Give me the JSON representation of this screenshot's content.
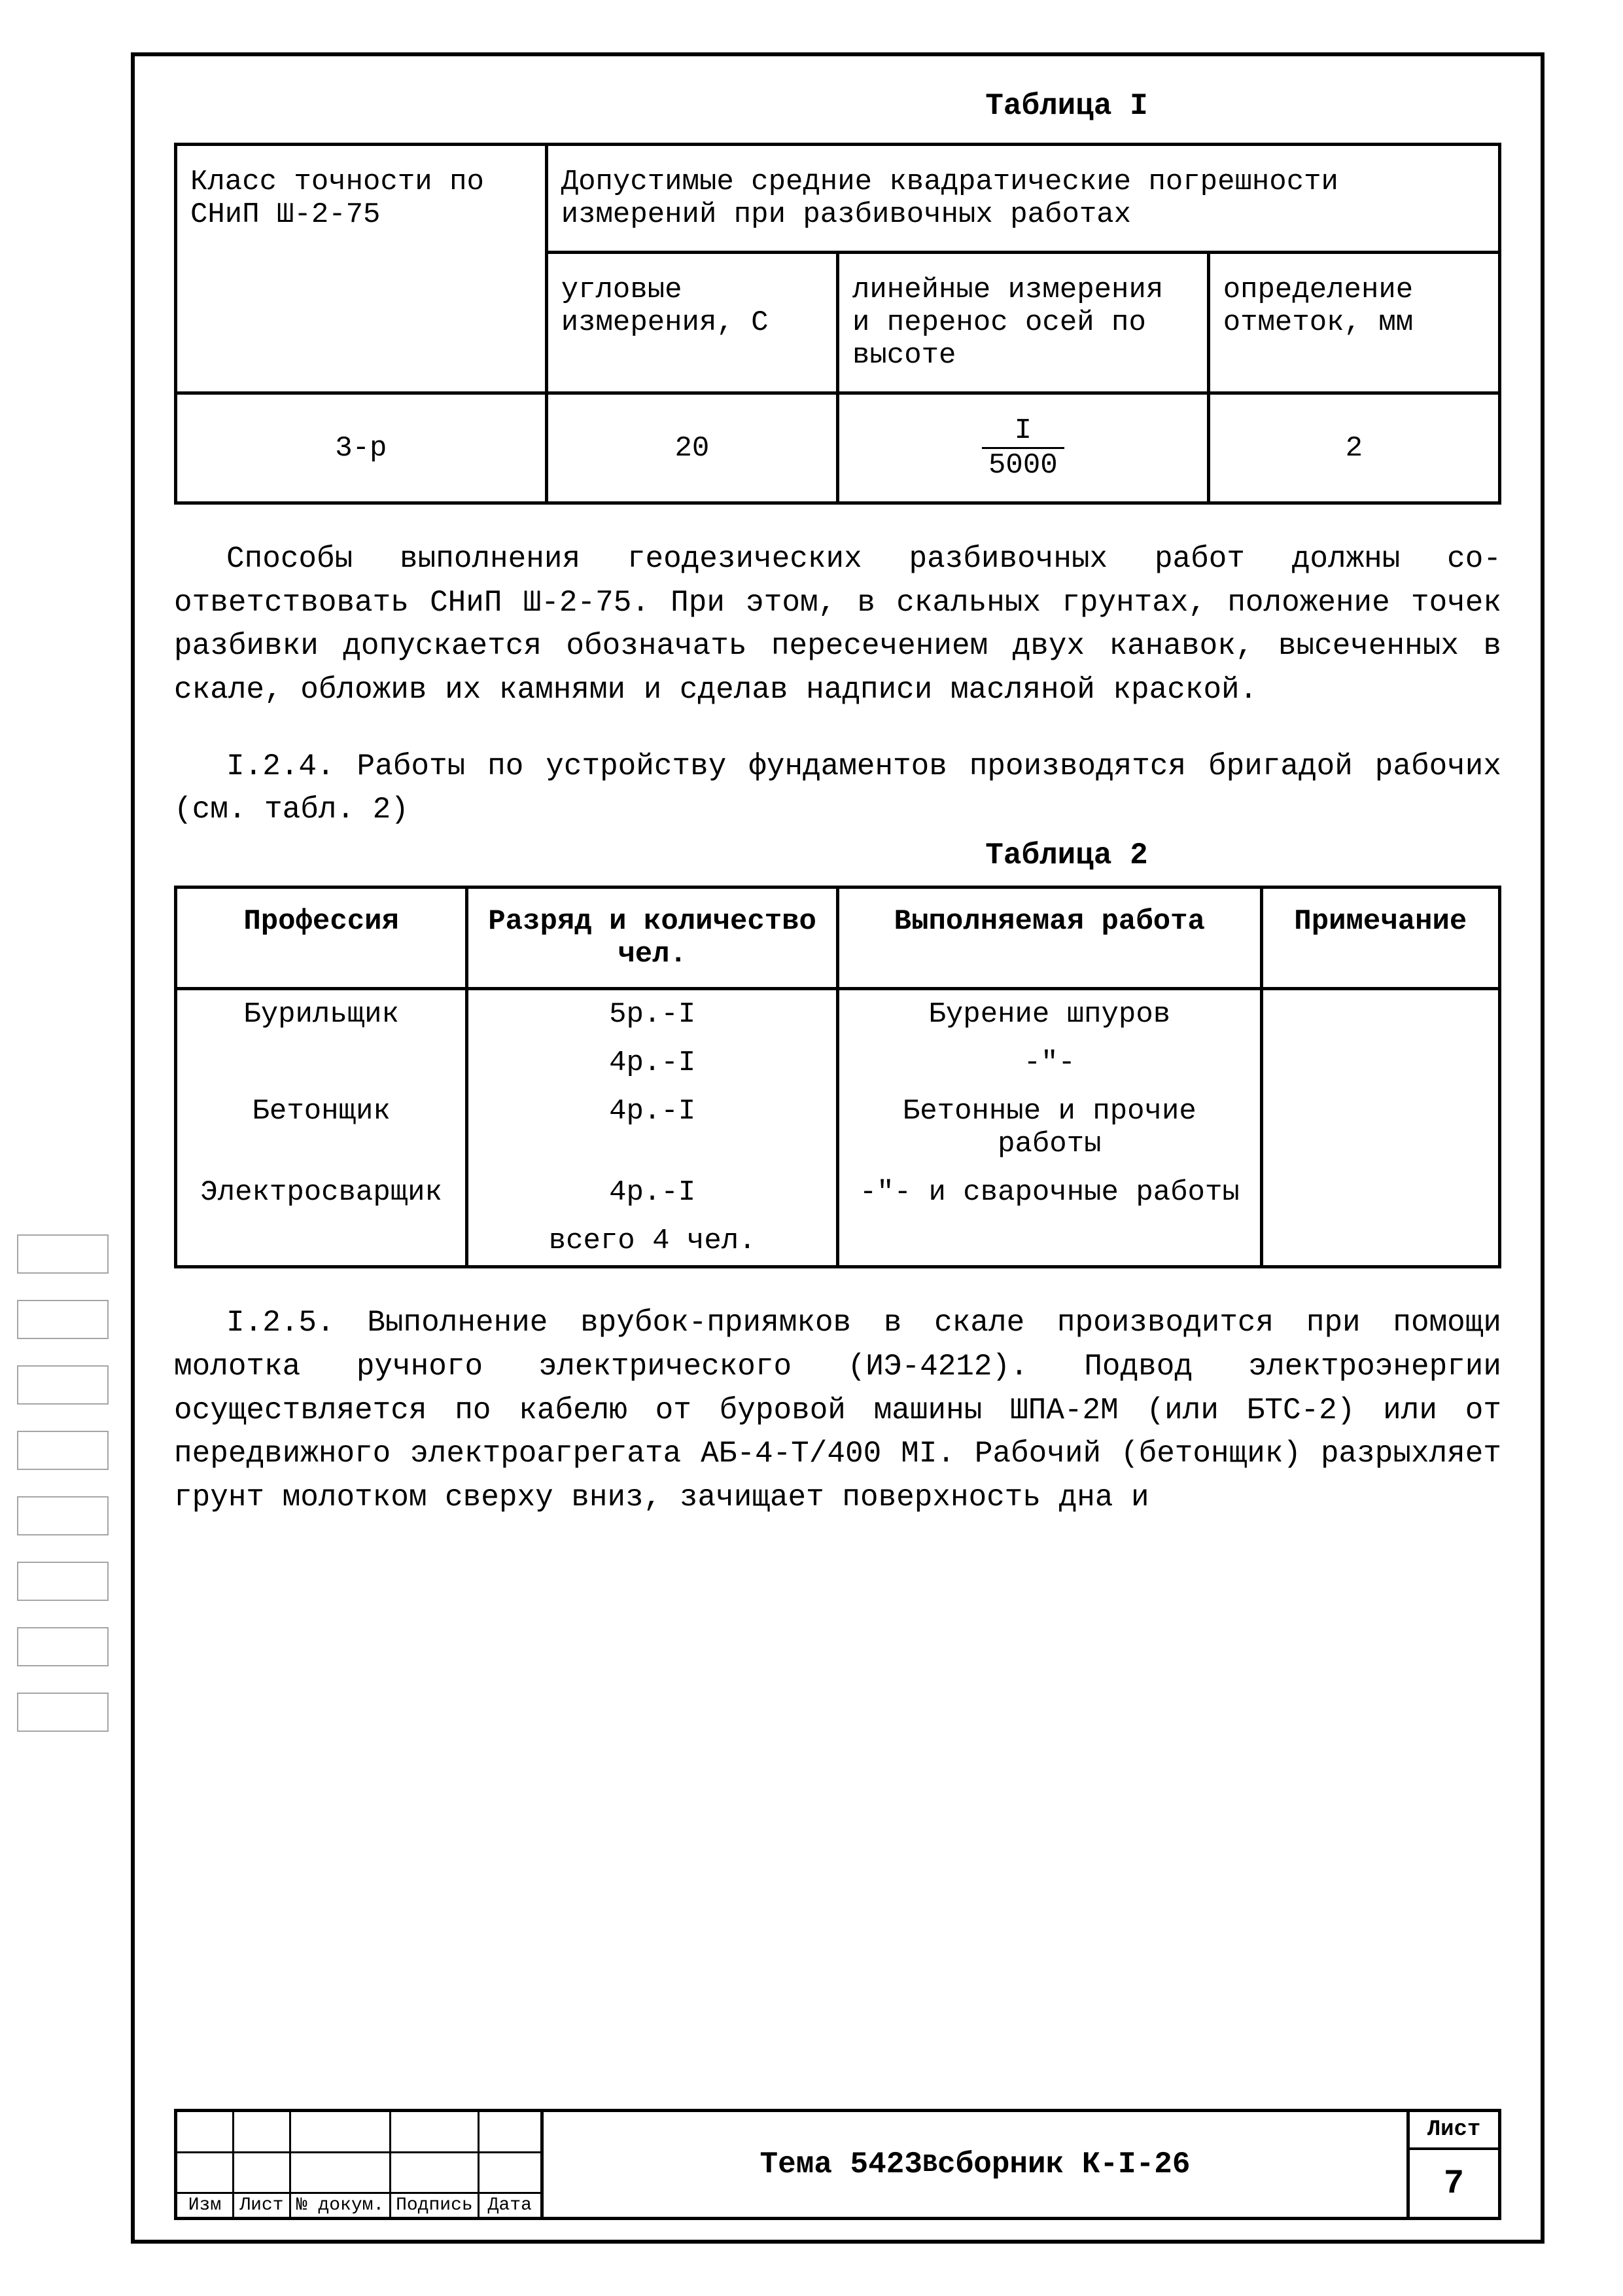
{
  "table1": {
    "caption": "Таблица I",
    "header_col1": "Класс точности по СНиП Ш-2-75",
    "header_span": "Допустимые средние квадратические погрешности измерений при разбивочных работах",
    "sub1": "угловые измерения, С",
    "sub2": "линейные измерения и перенос осей по высоте",
    "sub3": "определение отметок, мм",
    "row": {
      "c1": "3-р",
      "c2": "20",
      "c3_num": "I",
      "c3_den": "5000",
      "c4": "2"
    },
    "border_color": "#000000",
    "font_size": 44
  },
  "para1": "Способы выполнения геодезических разбивочных работ должны со­ответствовать СНиП Ш-2-75. При этом, в скальных грунтах, положение точек разбивки допускается обозначать пересечением двух канавок, вы­сеченных в скале, обложив их камнями и сделав надписи масляной крас­кой.",
  "para2": "I.2.4. Работы по устройству фундаментов производятся бригадой рабочих (см. табл. 2)",
  "table2": {
    "caption": "Таблица 2",
    "h1": "Профессия",
    "h2": "Разряд и коли­чество чел.",
    "h3": "Выполняемая работа",
    "h4": "Приме­чание",
    "rows": [
      {
        "c1": "Бурильщик",
        "c2": "5р.-I",
        "c3": "Бурение шпуров",
        "c4": ""
      },
      {
        "c1": "",
        "c2": "4р.-I",
        "c3": "-\"-",
        "c4": ""
      },
      {
        "c1": "Бетонщик",
        "c2": "4р.-I",
        "c3": "Бетонные и прочие работы",
        "c4": ""
      },
      {
        "c1": "Электросварщик",
        "c2": "4р.-I",
        "c3": "-\"- и сварочные работы",
        "c4": ""
      },
      {
        "c1": "",
        "c2": "всего 4 чел.",
        "c3": "",
        "c4": ""
      }
    ],
    "border_color": "#000000",
    "font_size": 44
  },
  "para3": "I.2.5. Выполнение врубок-приямков в скале производится при помощи молотка ручного электрического (ИЭ-4212). Подвод электроэнергии осуществляется по кабелю от буровой машины   ШПА-2М (или БТС-2) или от передвижного электроагрегата АБ-4-Т/400 МI. Рабочий (бетонщик) разрыхляет грунт молотком сверху вниз, зачищает поверхность дна и",
  "footer": {
    "rev_headers": [
      "Изм",
      "Лист",
      "№ докум.",
      "Подпись",
      "Дата"
    ],
    "doc_title_a": "Тема 5423",
    "doc_title_sup": "В",
    "doc_title_b": "  сборник К-I-26",
    "sheet_label": "Лист",
    "sheet_num": "7"
  },
  "style": {
    "background_color": "#ffffff",
    "text_color": "#000000",
    "font_family": "Courier New",
    "body_font_size": 46,
    "border_width": 5
  }
}
